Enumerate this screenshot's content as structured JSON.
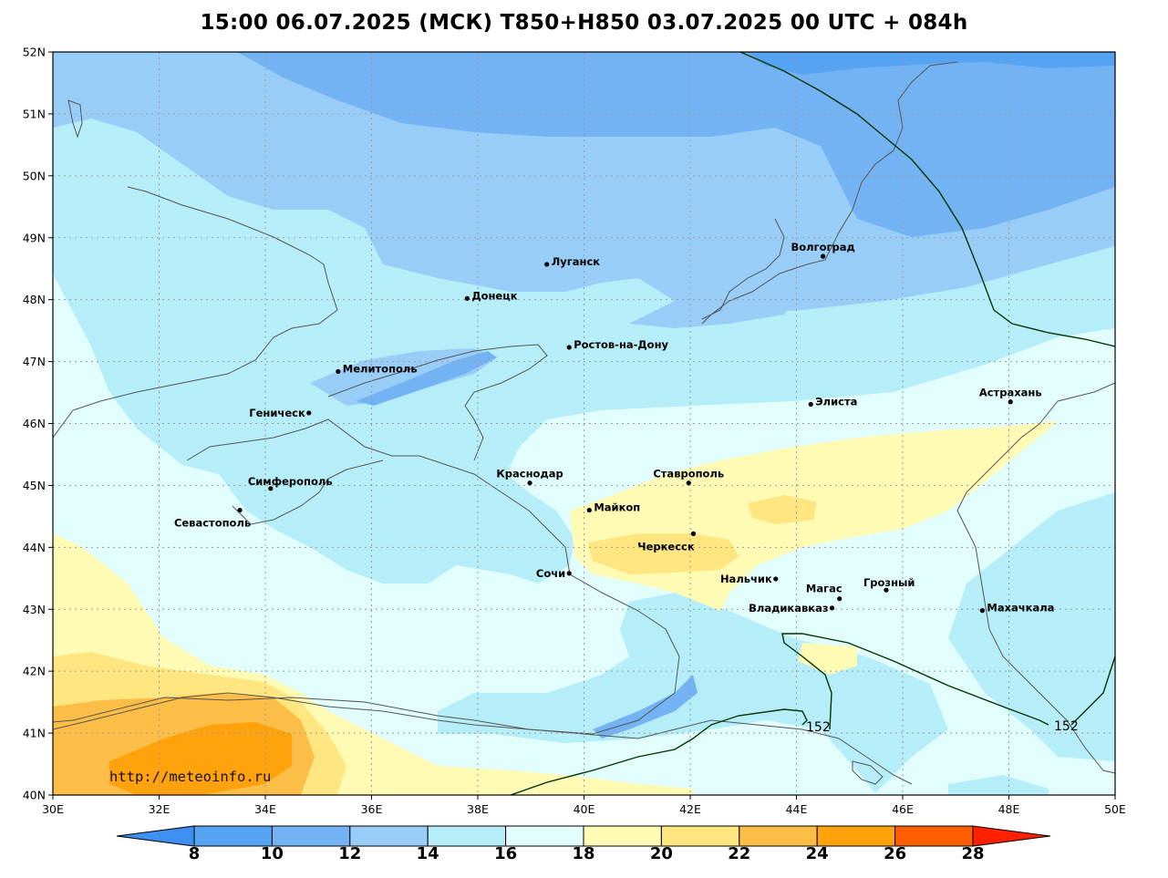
{
  "title": "15:00 06.07.2025 (МСК) T850+H850 03.07.2025 00 UTC + 084h",
  "watermark": "http://meteoinfo.ru",
  "axes": {
    "lat_labels": [
      "52N",
      "51N",
      "50N",
      "49N",
      "48N",
      "47N",
      "46N",
      "45N",
      "44N",
      "43N",
      "42N",
      "41N",
      "40N"
    ],
    "lon_labels": [
      "30E",
      "32E",
      "34E",
      "36E",
      "38E",
      "40E",
      "42E",
      "44E",
      "46E",
      "48E",
      "50E"
    ],
    "grid": true
  },
  "colorbar": {
    "labels": [
      "8",
      "10",
      "12",
      "14",
      "16",
      "18",
      "20",
      "22",
      "24",
      "26",
      "28"
    ],
    "colors": [
      "#3d8ff0",
      "#56a3f2",
      "#74b3f3",
      "#98cdf7",
      "#b5eef8",
      "#e1fefd",
      "#fffab4",
      "#ffe680",
      "#fcbe46",
      "#ffa20c",
      "#ff5e00",
      "#ff2000"
    ]
  },
  "contour_labels": [
    "152",
    "152"
  ],
  "cities": [
    {
      "name": "Луганск",
      "lon": 39.3,
      "lat": 48.57,
      "anchor": "right"
    },
    {
      "name": "Донецк",
      "lon": 37.8,
      "lat": 48.02,
      "anchor": "right"
    },
    {
      "name": "Волгоград",
      "lon": 44.5,
      "lat": 48.7,
      "anchor": "above"
    },
    {
      "name": "Ростов-на-Дону",
      "lon": 39.72,
      "lat": 47.23,
      "anchor": "right"
    },
    {
      "name": "Мелитополь",
      "lon": 35.37,
      "lat": 46.84,
      "anchor": "right"
    },
    {
      "name": "Элиста",
      "lon": 44.27,
      "lat": 46.31,
      "anchor": "right"
    },
    {
      "name": "Астрахань",
      "lon": 48.03,
      "lat": 46.35,
      "anchor": "above"
    },
    {
      "name": "Геническ",
      "lon": 34.82,
      "lat": 46.17,
      "anchor": "left"
    },
    {
      "name": "Симферополь",
      "lon": 34.1,
      "lat": 44.95,
      "anchor": "above-right"
    },
    {
      "name": "Краснодар",
      "lon": 38.98,
      "lat": 45.04,
      "anchor": "above"
    },
    {
      "name": "Ставрополь",
      "lon": 41.97,
      "lat": 45.04,
      "anchor": "above"
    },
    {
      "name": "Майкоп",
      "lon": 40.1,
      "lat": 44.6,
      "anchor": "right"
    },
    {
      "name": "Севастополь",
      "lon": 33.52,
      "lat": 44.6,
      "anchor": "below"
    },
    {
      "name": "Черкесск",
      "lon": 42.06,
      "lat": 44.22,
      "anchor": "below"
    },
    {
      "name": "Сочи",
      "lon": 39.72,
      "lat": 43.58,
      "anchor": "left"
    },
    {
      "name": "Нальчик",
      "lon": 43.61,
      "lat": 43.49,
      "anchor": "left"
    },
    {
      "name": "Магас",
      "lon": 44.81,
      "lat": 43.17,
      "anchor": "above-left"
    },
    {
      "name": "Грозный",
      "lon": 45.69,
      "lat": 43.31,
      "anchor": "above-right"
    },
    {
      "name": "Владикавказ",
      "lon": 44.67,
      "lat": 43.02,
      "anchor": "left"
    },
    {
      "name": "Махачкала",
      "lon": 47.5,
      "lat": 42.98,
      "anchor": "right"
    }
  ]
}
